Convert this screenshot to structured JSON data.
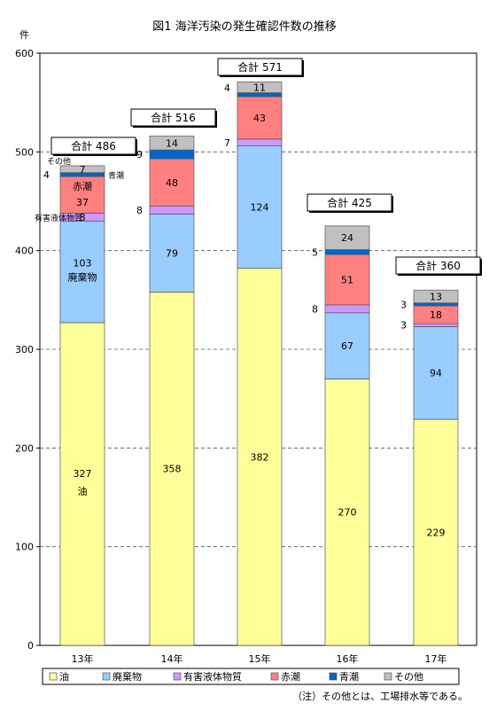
{
  "chart_data": {
    "type": "bar",
    "stacked": true,
    "title": "図1 海洋汚染の発生確認件数の推移",
    "ylabel": "件",
    "xlabel": "",
    "ylim": [
      0,
      600
    ],
    "yticks": [
      0,
      100,
      200,
      300,
      400,
      500,
      600
    ],
    "grid": "horizontal dashed",
    "legend_position": "bottom",
    "categories": [
      "13年",
      "14年",
      "15年",
      "16年",
      "17年"
    ],
    "series": [
      {
        "name": "油",
        "color": "#ffff99",
        "values": [
          327,
          358,
          382,
          270,
          229
        ]
      },
      {
        "name": "廃棄物",
        "color": "#99ccff",
        "values": [
          103,
          79,
          124,
          67,
          94
        ]
      },
      {
        "name": "有害液体物質",
        "color": "#cc99ff",
        "values": [
          8,
          8,
          7,
          8,
          3
        ]
      },
      {
        "name": "赤潮",
        "color": "#ff8080",
        "values": [
          37,
          48,
          43,
          51,
          18
        ]
      },
      {
        "name": "青潮",
        "color": "#0066cc",
        "values": [
          4,
          9,
          4,
          5,
          3
        ]
      },
      {
        "name": "その他",
        "color": "#c0c0c0",
        "values": [
          7,
          14,
          11,
          24,
          13
        ]
      }
    ],
    "totals": [
      "合計 486",
      "合計 516",
      "合計 571",
      "合計 425",
      "合計 360"
    ],
    "inline_series_labels": {
      "oil": "油",
      "waste": "廃棄物",
      "redtide": "赤潮",
      "blue": "青潮",
      "other": "その他",
      "hazard": "有害液体物質"
    },
    "note": "（注）その他とは、工場排水等である。"
  }
}
